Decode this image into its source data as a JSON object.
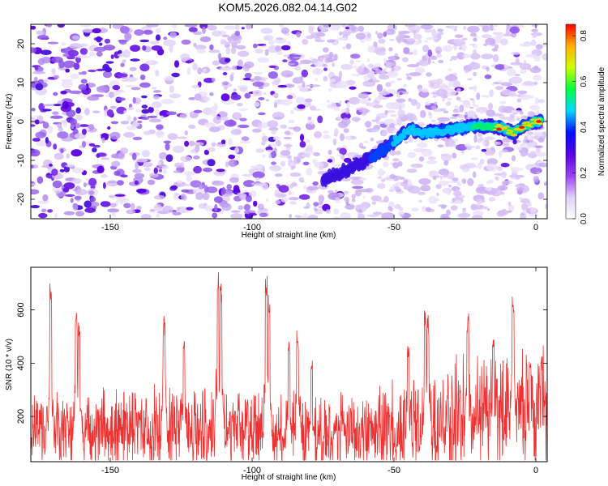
{
  "title": "KOM5.2026.082.04.14.G02",
  "chart_data": [
    {
      "type": "heatmap",
      "xlabel": "Height of straight line (km)",
      "ylabel": "Frequency (Hz)",
      "xlim": [
        -178,
        4
      ],
      "ylim": [
        -25,
        25
      ],
      "xticks": [
        -150,
        -100,
        -50,
        0
      ],
      "xtick_labels": [
        "-150",
        "-100",
        "-50",
        "0"
      ],
      "yticks": [
        -20,
        -10,
        0,
        10,
        20
      ],
      "ytick_labels": [
        "-20",
        "-10",
        "0",
        "10",
        "20"
      ],
      "colorbar": {
        "label": "Normalized spectral amplitude",
        "range": [
          0,
          0.85
        ],
        "ticks": [
          0.0,
          0.2,
          0.4,
          0.6,
          0.8
        ],
        "tick_labels": [
          "0.0",
          "0.2",
          "0.4",
          "0.6",
          "0.8"
        ],
        "colormap": [
          "#ffffff",
          "#e0d0f8",
          "#9a40f0",
          "#5a00e0",
          "#0010ff",
          "#00d8ff",
          "#00ff40",
          "#d0ff00",
          "#ffb000",
          "#ff0000"
        ]
      },
      "ridge": {
        "description": "signal track",
        "points": [
          [
            -75,
            -15
          ],
          [
            -62,
            -11
          ],
          [
            -55,
            -8
          ],
          [
            -48,
            -4
          ],
          [
            -44,
            -2
          ],
          [
            -40,
            -3
          ],
          [
            -34,
            -2.5
          ],
          [
            -28,
            -2
          ],
          [
            -20,
            -1
          ],
          [
            -12,
            -1.5
          ],
          [
            -8,
            -3
          ],
          [
            -4,
            -1
          ],
          [
            0,
            0
          ],
          [
            2,
            0
          ]
        ],
        "peak_amplitude": 0.8
      }
    },
    {
      "type": "line",
      "xlabel": "Height of straight line (km)",
      "ylabel": "SNR (10 * v/v)",
      "xlim": [
        -178,
        4
      ],
      "ylim": [
        30,
        760
      ],
      "xticks": [
        -150,
        -100,
        -50,
        0
      ],
      "xtick_labels": [
        "-150",
        "-100",
        "-50",
        "0"
      ],
      "yticks": [
        200,
        400,
        600
      ],
      "ytick_labels": [
        "200",
        "400",
        "600"
      ],
      "color": "#ee3030",
      "baseline": [
        [
          -178,
          150
        ],
        [
          -120,
          150
        ],
        [
          -100,
          145
        ],
        [
          -90,
          135
        ],
        [
          -70,
          140
        ],
        [
          -50,
          155
        ],
        [
          -40,
          185
        ],
        [
          -20,
          215
        ],
        [
          -10,
          230
        ],
        [
          4,
          255
        ]
      ],
      "spikes": [
        [
          -171,
          710
        ],
        [
          -162,
          615
        ],
        [
          -161,
          560
        ],
        [
          -131,
          590
        ],
        [
          -124,
          490
        ],
        [
          -112,
          750
        ],
        [
          -111,
          700
        ],
        [
          -95,
          750
        ],
        [
          -94,
          690
        ],
        [
          -87,
          480
        ],
        [
          -84,
          530
        ],
        [
          -79,
          420
        ],
        [
          -45,
          490
        ],
        [
          -39,
          600
        ],
        [
          -38,
          590
        ],
        [
          -24,
          590
        ],
        [
          -15,
          530
        ],
        [
          -8,
          670
        ],
        [
          -2,
          420
        ],
        [
          2,
          430
        ]
      ]
    }
  ]
}
